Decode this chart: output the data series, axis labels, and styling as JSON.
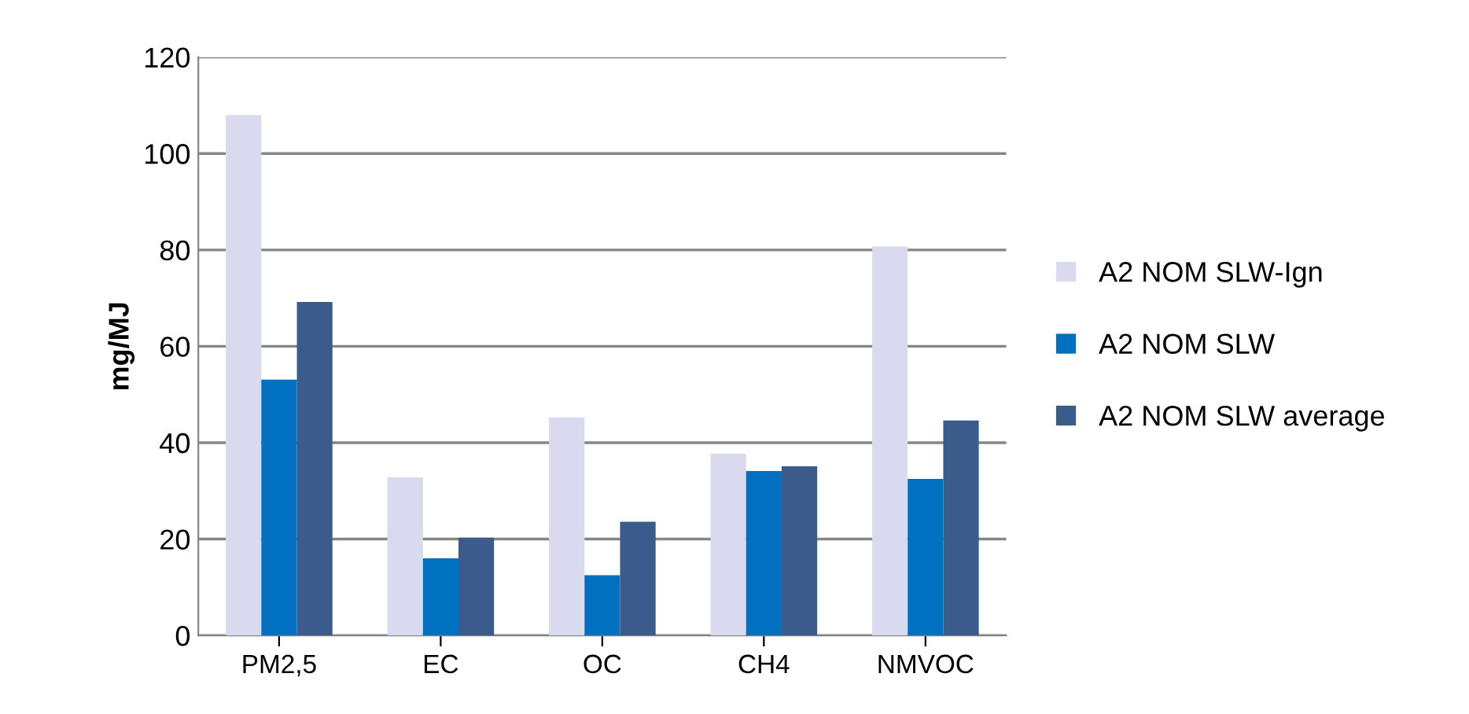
{
  "chart_data": {
    "type": "bar",
    "ylabel": "mg/MJ",
    "categories": [
      "PM2,5",
      "EC",
      "OC",
      "CH4",
      "NMVOC"
    ],
    "series": [
      {
        "name": "A2 NOM SLW-Ign",
        "color": "#d9d9f0",
        "values": [
          108,
          32.8,
          45.2,
          37.7,
          80.7
        ]
      },
      {
        "name": "A2 NOM SLW",
        "color": "#0070c0",
        "values": [
          53.1,
          16,
          12.5,
          34.1,
          32.5
        ]
      },
      {
        "name": "A2 NOM SLW average",
        "color": "#3b5b8c",
        "values": [
          69.2,
          20.3,
          23.6,
          35.1,
          44.6
        ]
      }
    ],
    "ylim": [
      0,
      120
    ],
    "yticks": [
      0,
      20,
      40,
      60,
      80,
      100,
      120
    ],
    "grid": "y",
    "legend": "right"
  }
}
